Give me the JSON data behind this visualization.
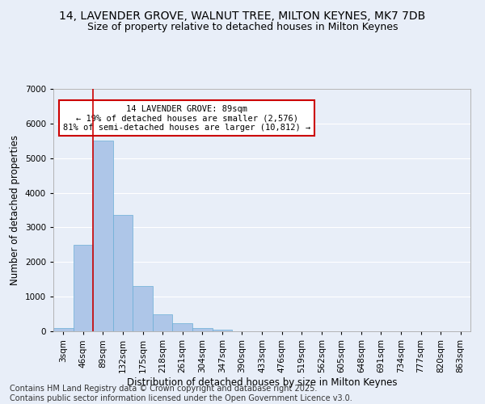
{
  "title_line1": "14, LAVENDER GROVE, WALNUT TREE, MILTON KEYNES, MK7 7DB",
  "title_line2": "Size of property relative to detached houses in Milton Keynes",
  "xlabel": "Distribution of detached houses by size in Milton Keynes",
  "ylabel": "Number of detached properties",
  "categories": [
    "3sqm",
    "46sqm",
    "89sqm",
    "132sqm",
    "175sqm",
    "218sqm",
    "261sqm",
    "304sqm",
    "347sqm",
    "390sqm",
    "433sqm",
    "476sqm",
    "519sqm",
    "562sqm",
    "605sqm",
    "648sqm",
    "691sqm",
    "734sqm",
    "777sqm",
    "820sqm",
    "863sqm"
  ],
  "values": [
    100,
    2500,
    5500,
    3350,
    1300,
    480,
    230,
    100,
    50,
    10,
    0,
    0,
    0,
    0,
    0,
    0,
    0,
    0,
    0,
    0,
    0
  ],
  "bar_color": "#aec6e8",
  "bar_edgecolor": "#6aaed6",
  "highlight_index": 2,
  "highlight_line_color": "#cc0000",
  "ylim": [
    0,
    7000
  ],
  "yticks": [
    0,
    1000,
    2000,
    3000,
    4000,
    5000,
    6000,
    7000
  ],
  "annotation_text": "14 LAVENDER GROVE: 89sqm\n← 19% of detached houses are smaller (2,576)\n81% of semi-detached houses are larger (10,812) →",
  "annotation_box_color": "#ffffff",
  "annotation_box_edgecolor": "#cc0000",
  "footer_line1": "Contains HM Land Registry data © Crown copyright and database right 2025.",
  "footer_line2": "Contains public sector information licensed under the Open Government Licence v3.0.",
  "background_color": "#e8eef8",
  "grid_color": "#ffffff",
  "title_fontsize": 10,
  "subtitle_fontsize": 9,
  "axis_label_fontsize": 8.5,
  "tick_fontsize": 7.5,
  "annotation_fontsize": 7.5,
  "footer_fontsize": 7
}
